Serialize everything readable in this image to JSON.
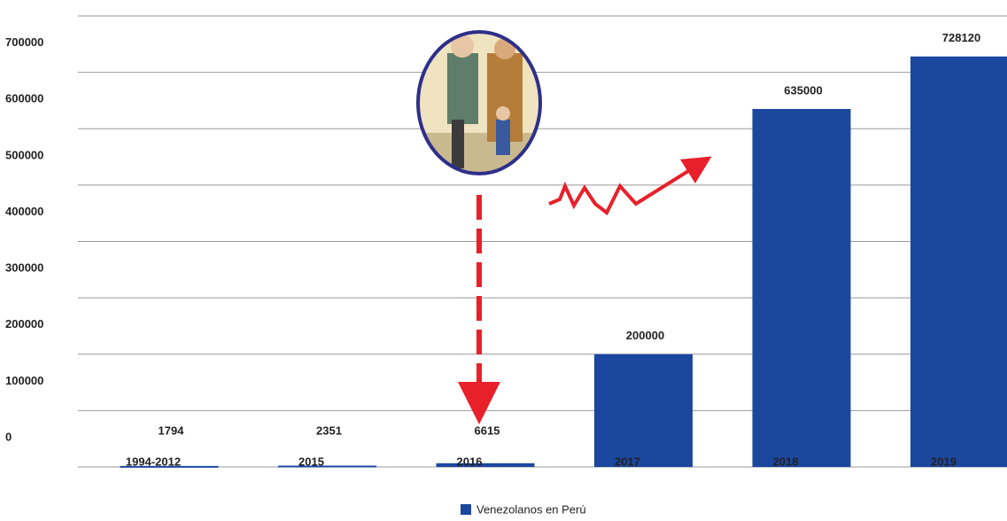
{
  "chart_data": {
    "type": "bar",
    "categories": [
      "1994-2012",
      "2015",
      "2016",
      "2017",
      "2018",
      "2019"
    ],
    "series": [
      {
        "name": "Venezolanos en Perú",
        "color": "#1b479f",
        "values": [
          1794,
          2351,
          6615,
          200000,
          635000,
          728120
        ]
      }
    ],
    "ylim": [
      0,
      800000
    ],
    "yticks": [
      0,
      100000,
      200000,
      300000,
      400000,
      500000,
      600000,
      700000,
      800000
    ],
    "grid": true
  }
}
